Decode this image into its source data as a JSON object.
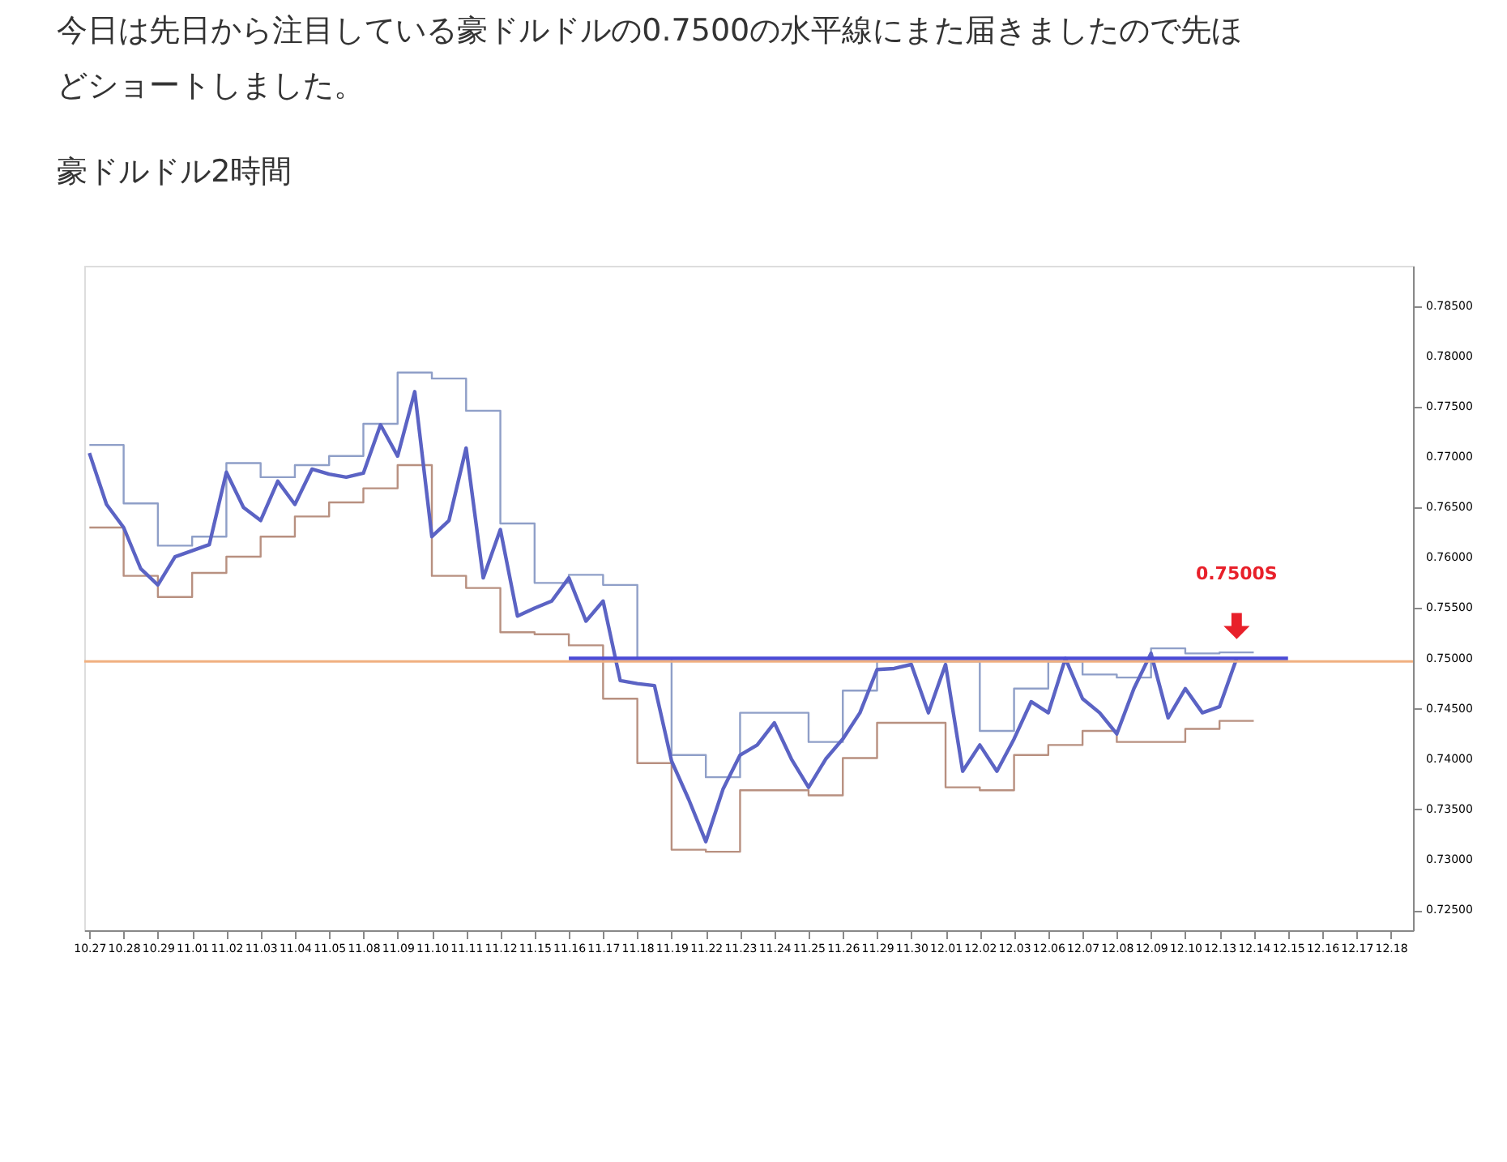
{
  "chart_data": {
    "type": "line",
    "title": "今日は先日から注目している豪ドルドルの0.7500の水平線にまた届きましたので先ほどショートしました。",
    "subtitle": "豪ドルドル2時間",
    "categories": [
      "10.27",
      null,
      "10.28",
      null,
      "10.29",
      null,
      "11.01",
      null,
      "11.02",
      null,
      "11.03",
      null,
      "11.04",
      null,
      "11.05",
      null,
      "11.08",
      null,
      "11.09",
      null,
      "11.10",
      null,
      "11.11",
      null,
      "11.12",
      null,
      "11.15",
      null,
      "11.16",
      null,
      "11.17",
      null,
      "11.18",
      null,
      "11.19",
      null,
      "11.22",
      null,
      "11.23",
      null,
      "11.24",
      null,
      "11.25",
      null,
      "11.26",
      null,
      "11.29",
      null,
      "11.30",
      null,
      "12.01",
      null,
      "12.02",
      null,
      "12.03",
      null,
      "12.06",
      null,
      "12.07",
      null,
      "12.08",
      null,
      "12.09",
      null,
      "12.10",
      null,
      "12.13",
      null,
      "12.14",
      null,
      "12.15",
      null,
      "12.16",
      null,
      "12.17",
      null,
      "12.18",
      null
    ],
    "ylim": [
      0.723,
      0.789
    ],
    "yticks": [
      {
        "value": 0.725,
        "label": "0.72500"
      },
      {
        "value": 0.73,
        "label": "0.73000"
      },
      {
        "value": 0.735,
        "label": "0.73500"
      },
      {
        "value": 0.74,
        "label": "0.74000"
      },
      {
        "value": 0.745,
        "label": "0.74500"
      },
      {
        "value": 0.75,
        "label": "0.75000"
      },
      {
        "value": 0.755,
        "label": "0.75500"
      },
      {
        "value": 0.76,
        "label": "0.76000"
      },
      {
        "value": 0.765,
        "label": "0.76500"
      },
      {
        "value": 0.77,
        "label": "0.77000"
      },
      {
        "value": 0.775,
        "label": "0.77500"
      },
      {
        "value": 0.78,
        "label": "0.78000"
      },
      {
        "value": 0.785,
        "label": "0.78500"
      }
    ],
    "series": [
      {
        "type": "step",
        "color": "#8f9fc8",
        "values": [
          0.7712,
          0.7712,
          0.7654,
          0.7654,
          0.7612,
          0.7612,
          0.7621,
          0.7621,
          0.7694,
          0.7694,
          0.768,
          0.768,
          0.7692,
          0.7692,
          0.7701,
          0.7701,
          0.7733,
          0.7733,
          0.7784,
          0.7784,
          0.7778,
          0.7778,
          0.7746,
          0.7746,
          0.7634,
          0.7634,
          0.7575,
          0.7575,
          0.7583,
          0.7583,
          0.7573,
          0.7573,
          0.75,
          0.75,
          0.7404,
          0.7404,
          0.7382,
          0.7382,
          0.7446,
          0.7446,
          0.7446,
          0.7446,
          0.7417,
          0.7417,
          0.7468,
          0.7468,
          0.7497,
          0.7497,
          0.7497,
          0.7497,
          0.7497,
          0.7497,
          0.7428,
          0.7428,
          0.747,
          0.747,
          0.7497,
          0.7497,
          0.7484,
          0.7484,
          0.7481,
          0.7481,
          0.751,
          0.751,
          0.7505,
          0.7505,
          0.7506,
          0.7506,
          0.7506,
          null,
          null,
          null,
          null,
          null,
          null,
          null,
          null,
          null
        ]
      },
      {
        "type": "step",
        "color": "#b89080",
        "values": [
          0.763,
          0.763,
          0.7582,
          0.7582,
          0.7561,
          0.7561,
          0.7585,
          0.7585,
          0.7601,
          0.7601,
          0.7621,
          0.7621,
          0.7641,
          0.7641,
          0.7655,
          0.7655,
          0.7669,
          0.7669,
          0.7692,
          0.7692,
          0.7582,
          0.7582,
          0.757,
          0.757,
          0.7526,
          0.7526,
          0.7524,
          0.7524,
          0.7513,
          0.7513,
          0.746,
          0.746,
          0.7396,
          0.7396,
          0.731,
          0.731,
          0.7308,
          0.7308,
          0.7369,
          0.7369,
          0.7369,
          0.7369,
          0.7364,
          0.7364,
          0.7401,
          0.7401,
          0.7436,
          0.7436,
          0.7436,
          0.7436,
          0.7372,
          0.7372,
          0.7369,
          0.7369,
          0.7404,
          0.7404,
          0.7414,
          0.7414,
          0.7428,
          0.7428,
          0.7417,
          0.7417,
          0.7417,
          0.7417,
          0.743,
          0.743,
          0.7438,
          0.7438,
          0.7438,
          null,
          null,
          null,
          null,
          null,
          null,
          null,
          null,
          null
        ]
      },
      {
        "color": "#5b63c4",
        "values": [
          0.7704,
          0.7653,
          0.763,
          0.7589,
          0.7573,
          0.7601,
          0.7607,
          0.7613,
          0.7685,
          0.765,
          0.7637,
          0.7676,
          0.7653,
          0.7688,
          0.7683,
          0.768,
          0.7684,
          0.7732,
          0.7701,
          0.7765,
          0.7621,
          0.7637,
          0.7709,
          0.758,
          0.7628,
          0.7542,
          0.755,
          0.7557,
          0.758,
          0.7537,
          0.7557,
          0.7478,
          0.7475,
          0.7473,
          0.7398,
          0.736,
          0.7318,
          0.737,
          0.7404,
          0.7414,
          0.7436,
          0.74,
          0.7372,
          0.74,
          0.742,
          0.7446,
          0.7489,
          0.749,
          0.7494,
          0.7446,
          0.7494,
          0.7388,
          0.7414,
          0.7388,
          0.742,
          0.7457,
          0.7446,
          0.75,
          0.746,
          0.7446,
          0.7425,
          0.747,
          0.7505,
          0.7441,
          0.747,
          0.7446,
          0.7452,
          0.75,
          null,
          null,
          null,
          null,
          null,
          null,
          null,
          null,
          null,
          null
        ]
      },
      {
        "type": "line",
        "color": "#4b4bd6",
        "values": [
          null,
          null,
          null,
          null,
          null,
          null,
          null,
          null,
          null,
          null,
          null,
          null,
          null,
          null,
          null,
          null,
          null,
          null,
          null,
          null,
          null,
          null,
          null,
          null,
          null,
          null,
          null,
          null,
          0.75,
          null,
          null,
          null,
          null,
          null,
          null,
          null,
          null,
          null,
          null,
          null,
          null,
          null,
          null,
          null,
          null,
          null,
          null,
          null,
          null,
          null,
          null,
          null,
          null,
          null,
          null,
          null,
          null,
          null,
          null,
          null,
          null,
          null,
          null,
          null,
          null,
          null,
          null,
          null,
          null,
          null,
          0.75,
          null,
          null,
          null,
          null,
          null,
          null,
          null
        ]
      }
    ],
    "ref_lines": [
      {
        "axis": "y",
        "value": 0.7497,
        "color": "#f0b080"
      }
    ],
    "annotations": [
      "0.7500S"
    ]
  }
}
